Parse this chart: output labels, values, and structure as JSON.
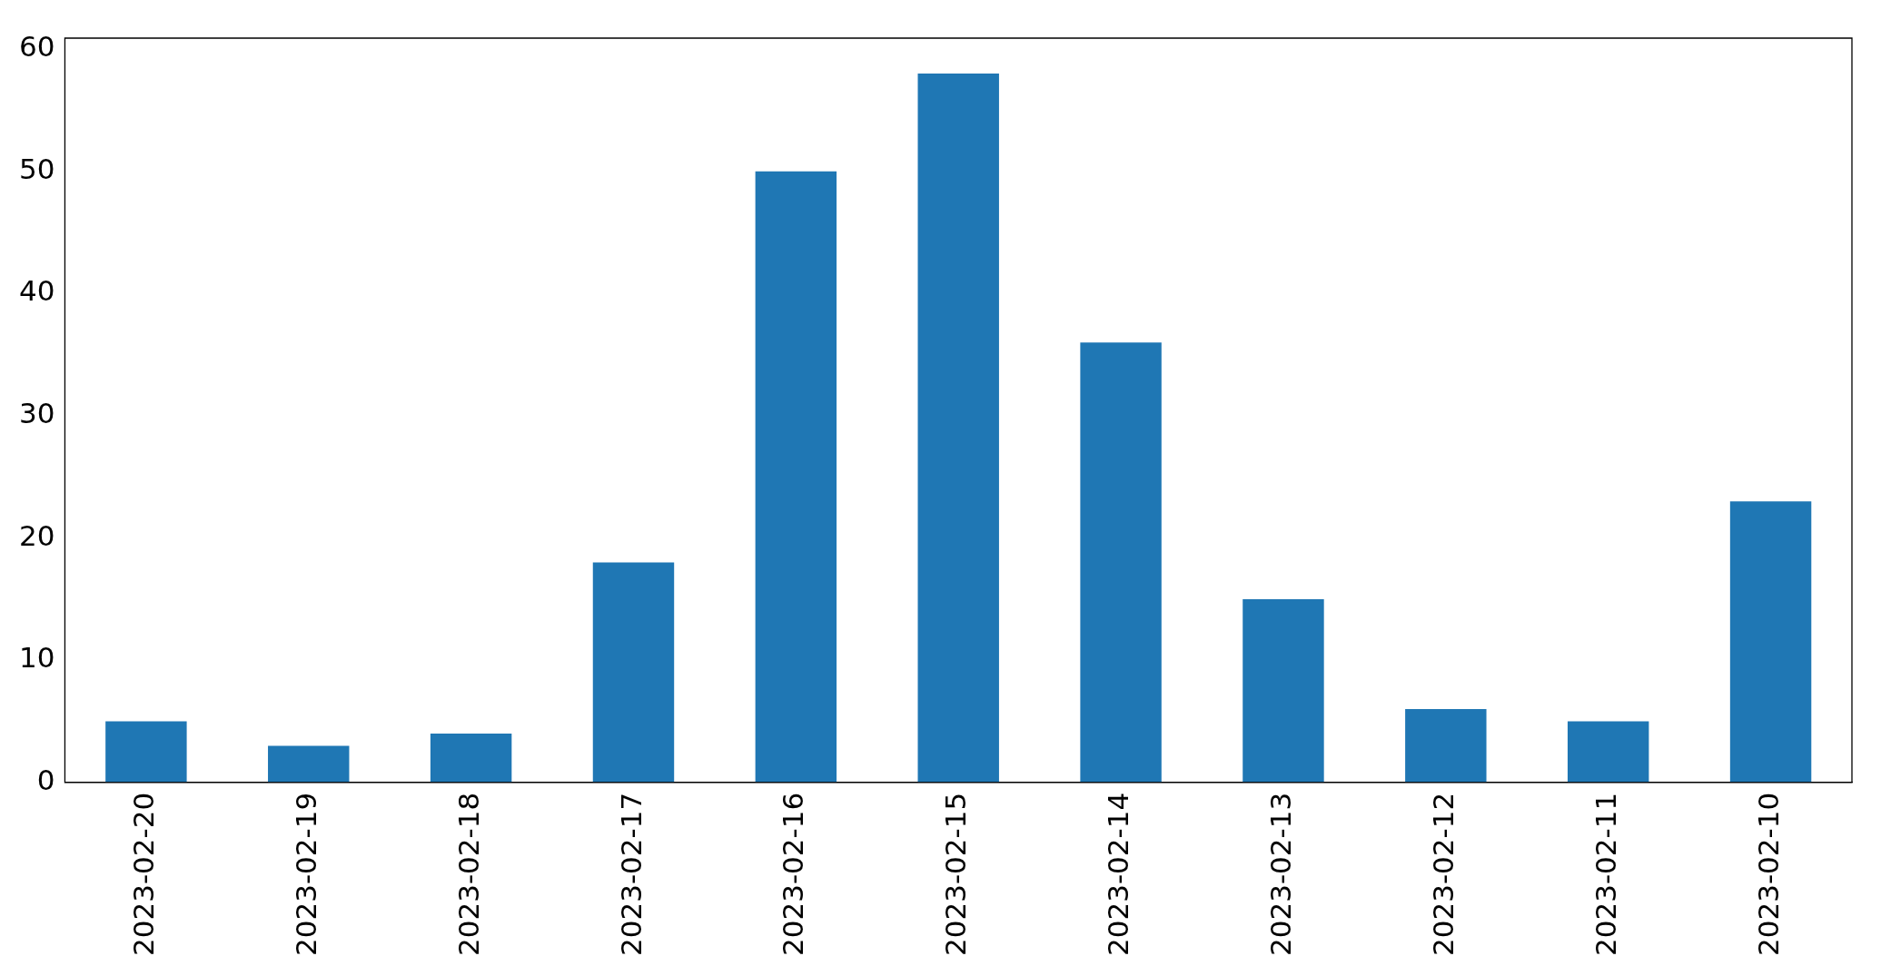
{
  "chart_data": {
    "type": "bar",
    "categories": [
      "2023-02-20",
      "2023-02-19",
      "2023-02-18",
      "2023-02-17",
      "2023-02-16",
      "2023-02-15",
      "2023-02-14",
      "2023-02-13",
      "2023-02-12",
      "2023-02-11",
      "2023-02-10"
    ],
    "values": [
      5,
      3,
      4,
      18,
      50,
      58,
      36,
      15,
      6,
      5,
      23
    ],
    "color": "#1f77b4",
    "ylim": [
      0,
      60.9
    ],
    "yticks": [
      0,
      10,
      20,
      30,
      40,
      50,
      60
    ],
    "grid": false,
    "legend": false
  }
}
